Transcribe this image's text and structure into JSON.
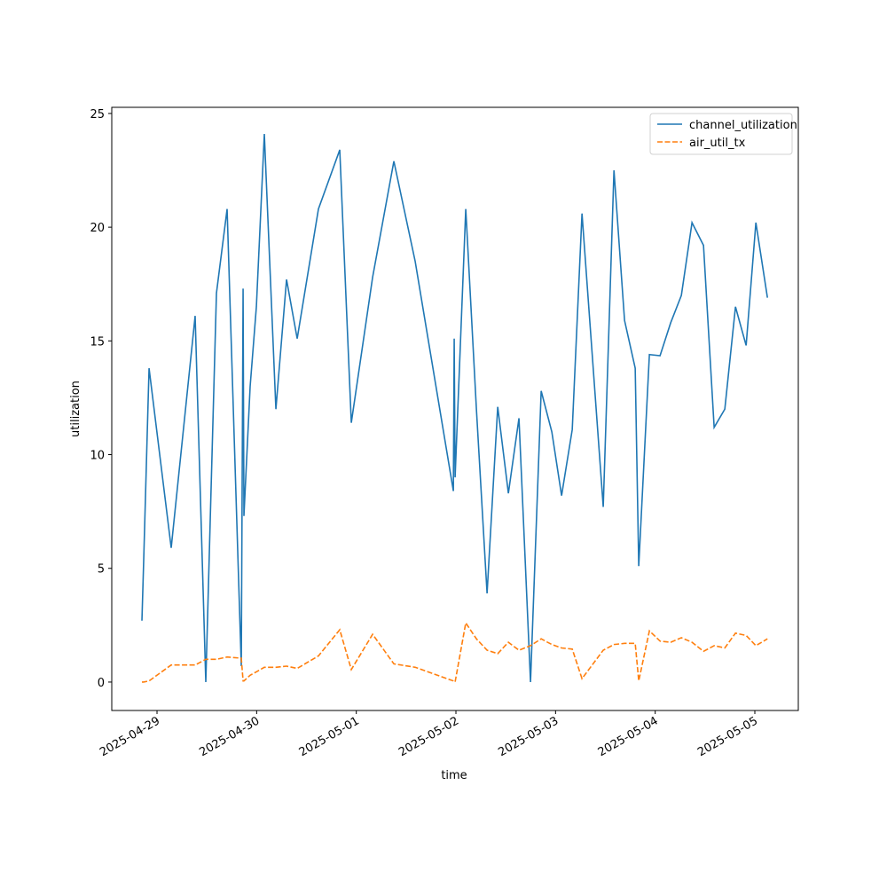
{
  "chart_data": {
    "type": "line",
    "xlabel": "time",
    "ylabel": "utilization",
    "x": [
      "2025-04-28T20:22",
      "2025-04-28T20:47",
      "2025-04-28T22:05",
      "2025-04-29T03:25",
      "2025-04-29T09:11",
      "2025-04-29T11:45",
      "2025-04-29T14:19",
      "2025-04-29T16:53",
      "2025-04-29T20:18",
      "2025-04-29T20:44",
      "2025-04-29T20:56",
      "2025-04-29T22:26",
      "2025-04-29T23:56",
      "2025-04-30T01:51",
      "2025-04-30T04:38",
      "2025-04-30T07:12",
      "2025-04-30T09:46",
      "2025-04-30T14:53",
      "2025-04-30T20:01",
      "2025-04-30T22:48",
      "2025-05-01T03:56",
      "2025-05-01T09:03",
      "2025-05-01T14:11",
      "2025-05-01T23:23",
      "2025-05-01T23:35",
      "2025-05-01T23:48",
      "2025-05-02T02:22",
      "2025-05-02T04:56",
      "2025-05-02T07:30",
      "2025-05-02T10:04",
      "2025-05-02T12:38",
      "2025-05-02T15:11",
      "2025-05-02T17:58",
      "2025-05-02T20:32",
      "2025-05-02T23:06",
      "2025-05-03T01:27",
      "2025-05-03T04:01",
      "2025-05-03T06:22",
      "2025-05-03T11:29",
      "2025-05-03T14:04",
      "2025-05-03T16:37",
      "2025-05-03T19:11",
      "2025-05-03T20:02",
      "2025-05-03T22:36",
      "2025-05-04T01:10",
      "2025-05-04T03:44",
      "2025-05-04T06:18",
      "2025-05-04T08:52",
      "2025-05-04T11:38",
      "2025-05-04T14:12",
      "2025-05-04T16:46",
      "2025-05-04T19:20",
      "2025-05-04T21:54",
      "2025-05-05T00:15",
      "2025-05-05T03:02"
    ],
    "series": [
      {
        "name": "channel_utilization",
        "color": "#1f77b4",
        "dash": false,
        "values": [
          2.7,
          5.3,
          13.8,
          5.9,
          16.1,
          0,
          17.1,
          20.8,
          0.7,
          17.3,
          7.3,
          13,
          16.5,
          24.1,
          12,
          17.7,
          15.1,
          20.8,
          23.4,
          11.4,
          17.8,
          22.9,
          18.5,
          8.4,
          15.1,
          9,
          20.8,
          12,
          3.9,
          12.1,
          8.3,
          11.6,
          0,
          12.8,
          11,
          8.2,
          11.1,
          20.6,
          7.7,
          22.5,
          15.9,
          13.8,
          5.1,
          14.4,
          14.35,
          15.8,
          17,
          20.2,
          19.2,
          11.2,
          12,
          16.5,
          14.8,
          20.2,
          16.9
        ]
      },
      {
        "name": "air_util_tx",
        "color": "#ff7f0e",
        "dash": true,
        "values": [
          0,
          0,
          0.05,
          0.75,
          0.75,
          1,
          1,
          1.1,
          1.05,
          0.05,
          0.05,
          0.3,
          0.45,
          0.65,
          0.65,
          0.7,
          0.6,
          1.15,
          2.3,
          0.55,
          2.1,
          0.8,
          0.65,
          0.05,
          0.02,
          0,
          2.6,
          1.9,
          1.4,
          1.25,
          1.75,
          1.4,
          1.6,
          1.9,
          1.65,
          1.5,
          1.45,
          0.15,
          1.4,
          1.65,
          1.7,
          1.7,
          0.05,
          2.25,
          1.8,
          1.75,
          1.95,
          1.75,
          1.35,
          1.6,
          1.5,
          2.15,
          2.05,
          1.6,
          1.9
        ]
      }
    ],
    "xlim": [
      "2025-04-28T13:06",
      "2025-05-05T10:28"
    ],
    "xticks": [
      "2025-04-29",
      "2025-04-30",
      "2025-05-01",
      "2025-05-02",
      "2025-05-03",
      "2025-05-04",
      "2025-05-05"
    ],
    "ylim": [
      -1.25,
      25.27
    ],
    "yticks": [
      0,
      5,
      10,
      15,
      20,
      25
    ],
    "legend": "upper right"
  }
}
